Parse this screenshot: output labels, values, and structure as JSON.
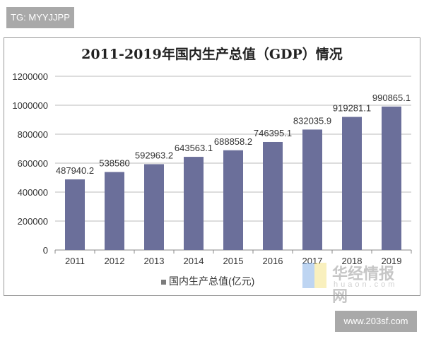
{
  "watermark_top": "TG: MYYJJPP",
  "watermark_bottom": "www.203sf.com",
  "watermark_logo": {
    "cn": "华经情报网",
    "en": "huaon.com"
  },
  "chart_data": {
    "type": "bar",
    "title": "2011-2019年国内生产总值（GDP）情况",
    "categories": [
      "2011",
      "2012",
      "2013",
      "2014",
      "2015",
      "2016",
      "2017",
      "2018",
      "2019"
    ],
    "series": [
      {
        "name": "国内生产总值(亿元)",
        "values": [
          487940.2,
          538580,
          592963.2,
          643563.1,
          688858.2,
          746395.1,
          832035.9,
          919281.1,
          990865.1
        ],
        "labels": [
          "487940.2",
          "538580",
          "592963.2",
          "643563.1",
          "688858.2",
          "746395.1",
          "832035.9",
          "919281.1",
          "990865.1"
        ]
      }
    ],
    "ylim": [
      0,
      1200000
    ],
    "yticks": [
      "0",
      "200000",
      "400000",
      "600000",
      "800000",
      "1000000",
      "1200000"
    ],
    "grid": true,
    "legend": "bottom",
    "bar_color": "#6b6f9a"
  }
}
